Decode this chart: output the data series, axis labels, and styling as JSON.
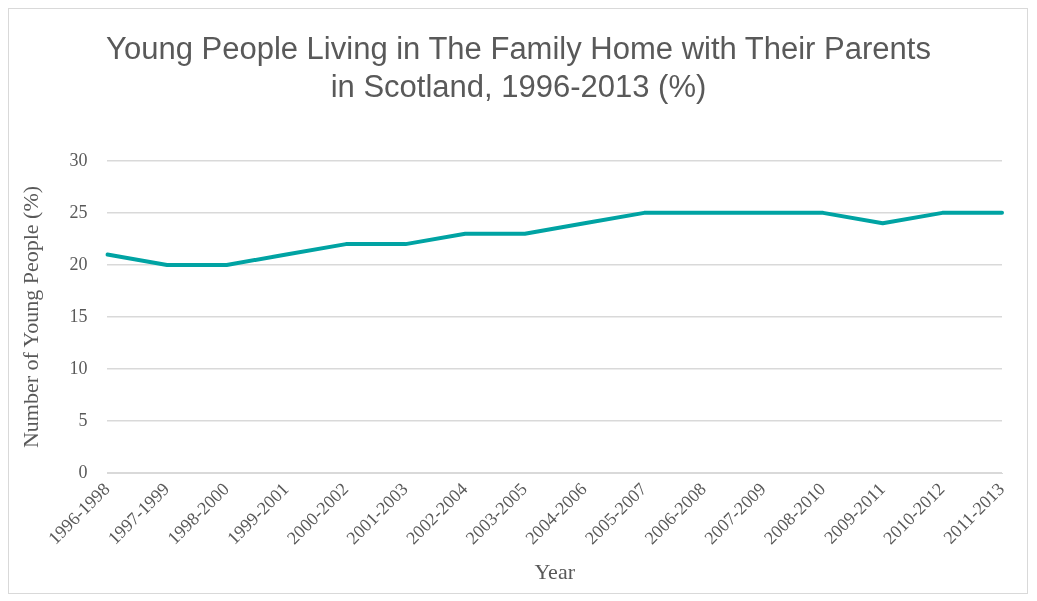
{
  "chart_data": {
    "type": "line",
    "title": "Young People Living in The Family Home with Their Parents in Scotland, 1996-2013 (%)",
    "xlabel": "Year",
    "ylabel": "Number of Young People (%)",
    "categories": [
      "1996-1998",
      "1997-1999",
      "1998-2000",
      "1999-2001",
      "2000-2002",
      "2001-2003",
      "2002-2004",
      "2003-2005",
      "2004-2006",
      "2005-2007",
      "2006-2008",
      "2007-2009",
      "2008-2010",
      "2009-2011",
      "2010-2012",
      "2011-2013"
    ],
    "series": [
      {
        "color": "#00a3a3",
        "values": [
          21,
          20,
          20,
          21,
          22,
          22,
          23,
          23,
          24,
          25,
          25,
          25,
          25,
          24,
          25,
          25
        ]
      }
    ],
    "ylim": [
      0,
      30
    ],
    "yticks": [
      0,
      5,
      10,
      15,
      20,
      25,
      30
    ],
    "grid": "y",
    "legend": false,
    "marker": "none",
    "line_style": "solid"
  }
}
